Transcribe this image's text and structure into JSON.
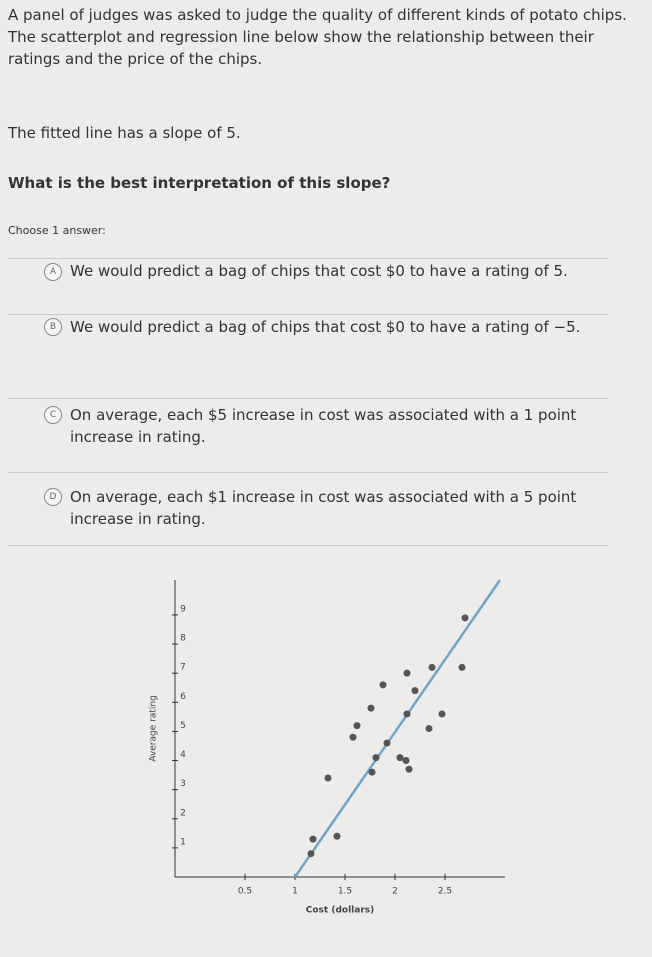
{
  "question": {
    "intro": "A panel of judges was asked to judge the quality of different kinds of potato chips. The scatterplot and regression line below show the relationship between their ratings and the price of the chips.",
    "slope_text": "The fitted line has a slope of 5.",
    "prompt": "What is the best interpretation of this slope?",
    "instruction": "Choose 1 answer:",
    "options": [
      {
        "letter": "A",
        "text": "We would predict a bag of chips that cost $0 to have a rating of 5."
      },
      {
        "letter": "B",
        "text": "We would predict a bag of chips that cost $0 to have a rating of −5."
      },
      {
        "letter": "C",
        "text": "On average, each $5 increase in cost was associated with a 1 point increase in rating."
      },
      {
        "letter": "D",
        "text": "On average, each $1 increase in cost was associated with a 5 point increase in rating."
      }
    ]
  },
  "chart_data": {
    "type": "scatter",
    "x_label": "Cost (dollars)",
    "y_label": "Average rating",
    "color": "#555",
    "line_color": "#6aa7c9",
    "x": [
      2.7,
      2.37,
      2.67,
      2.12,
      2.2,
      1.88,
      1.76,
      2.12,
      2.47,
      2.34,
      1.62,
      1.58,
      1.92,
      1.81,
      2.05,
      2.11,
      2.14,
      1.77,
      1.33,
      1.42,
      1.18,
      1.16
    ],
    "y": [
      8.9,
      7.2,
      7.2,
      7.0,
      6.4,
      6.6,
      5.8,
      5.6,
      5.6,
      5.1,
      5.2,
      4.8,
      4.6,
      4.1,
      4.1,
      4.0,
      3.7,
      3.6,
      3.4,
      1.4,
      1.3,
      0.8
    ],
    "fit_line": {
      "x": [
        1.0,
        3.05
      ],
      "y": [
        0,
        10.2
      ]
    },
    "xlim": [
      -0.2,
      3.1
    ],
    "ylim": [
      0,
      10.2
    ],
    "xticks": [
      0.5,
      1,
      1.5,
      2,
      2.5
    ],
    "yticks": [
      1,
      2,
      3,
      4,
      5,
      6,
      7,
      8,
      9
    ]
  }
}
